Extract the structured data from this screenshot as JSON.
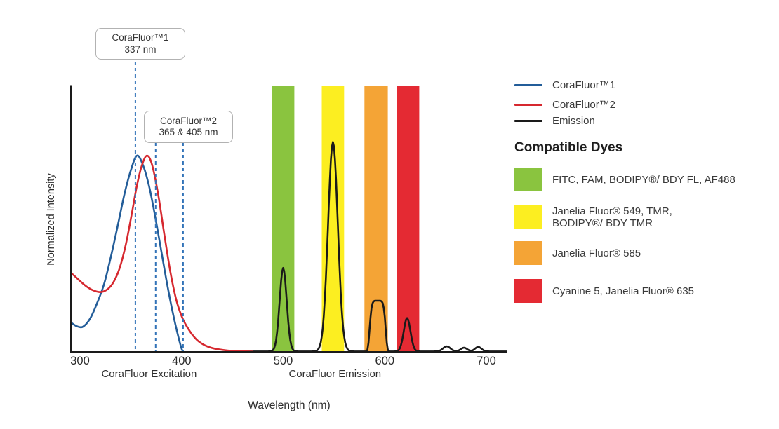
{
  "annotations": {
    "box1": {
      "line1": "CoraFluor™1",
      "line2": "337 nm"
    },
    "box2": {
      "line1": "CoraFluor™2",
      "line2": "365 & 405 nm"
    }
  },
  "legend": {
    "items": [
      {
        "label": "CoraFluor™1",
        "color": "#235D99"
      },
      {
        "label": "CoraFluor™2",
        "color": "#D6282F"
      },
      {
        "label": "Emission",
        "color": "#1A1A1A"
      }
    ],
    "dyes_heading": "Compatible Dyes",
    "dyes": [
      {
        "name": "green",
        "color": "#8AC43F",
        "label": "FITC, FAM, BODIPY®/ BDY FL, AF488",
        "label2": ""
      },
      {
        "name": "yellow",
        "color": "#FCEE21",
        "label": "Janelia Fluor® 549, TMR,",
        "label2": "BODIPY®/ BDY TMR"
      },
      {
        "name": "orange",
        "color": "#F4A436",
        "label": "Janelia Fluor® 585",
        "label2": ""
      },
      {
        "name": "red",
        "color": "#E42A33",
        "label": "Cyanine 5, Janelia Fluor® 635",
        "label2": ""
      }
    ]
  },
  "chart_data": {
    "type": "line",
    "title": "",
    "xlabel": "Wavelength (nm)",
    "ylabel": "Normalized Intensity",
    "x_ticks": [
      300,
      400,
      500,
      600,
      700
    ],
    "xlim": [
      292,
      720
    ],
    "ylim": [
      0,
      1.35
    ],
    "grid": false,
    "marker_color": "#3273B8",
    "emission_color": "#1A1A1A",
    "region_labels": [
      {
        "text": "CoraFluor Excitation",
        "center_nm": 368
      },
      {
        "text": "CoraFluor Emission",
        "center_nm": 551
      }
    ],
    "excitation_markers": [
      {
        "label_nm": "337",
        "nm_drawn": 354.5
      },
      {
        "label_nm": "365",
        "nm_drawn": 374.5
      },
      {
        "label_nm": "405",
        "nm_drawn": 401.5
      }
    ],
    "filter_bands": [
      {
        "name": "green",
        "nm_range": [
          489,
          511
        ],
        "color": "#8AC43F"
      },
      {
        "name": "yellow",
        "nm_range": [
          538,
          560
        ],
        "color": "#FCEE21"
      },
      {
        "name": "orange",
        "nm_range": [
          580,
          603
        ],
        "color": "#F4A436"
      },
      {
        "name": "red",
        "nm_range": [
          612,
          634
        ],
        "color": "#E42A33"
      }
    ],
    "series": [
      {
        "name": "CoraFluor™1 excitation",
        "color": "#235D99",
        "points": [
          [
            292,
            0.148
          ],
          [
            297,
            0.132
          ],
          [
            303,
            0.13
          ],
          [
            310,
            0.172
          ],
          [
            317,
            0.252
          ],
          [
            324,
            0.352
          ],
          [
            331,
            0.5
          ],
          [
            338,
            0.665
          ],
          [
            344,
            0.81
          ],
          [
            350,
            0.925
          ],
          [
            356,
            1.0
          ],
          [
            362,
            0.952
          ],
          [
            368,
            0.845
          ],
          [
            374,
            0.69
          ],
          [
            380,
            0.515
          ],
          [
            386,
            0.34
          ],
          [
            392,
            0.185
          ],
          [
            397,
            0.075
          ],
          [
            400,
            0.018
          ],
          [
            401.5,
            0.003
          ]
        ]
      },
      {
        "name": "CoraFluor™2 excitation",
        "color": "#D6282F",
        "points": [
          [
            292,
            0.4
          ],
          [
            298,
            0.372
          ],
          [
            305,
            0.34
          ],
          [
            312,
            0.317
          ],
          [
            320,
            0.306
          ],
          [
            327,
            0.32
          ],
          [
            333,
            0.357
          ],
          [
            339,
            0.428
          ],
          [
            345,
            0.545
          ],
          [
            351,
            0.705
          ],
          [
            356,
            0.848
          ],
          [
            361,
            0.952
          ],
          [
            366,
            1.0
          ],
          [
            371,
            0.952
          ],
          [
            377,
            0.8
          ],
          [
            383,
            0.6
          ],
          [
            389,
            0.408
          ],
          [
            395,
            0.262
          ],
          [
            401,
            0.172
          ],
          [
            408,
            0.108
          ],
          [
            415,
            0.063
          ],
          [
            423,
            0.035
          ],
          [
            432,
            0.019
          ],
          [
            445,
            0.009
          ],
          [
            458,
            0.005
          ],
          [
            470,
            0.003
          ]
        ]
      }
    ],
    "emission_peaks": [
      {
        "center_nm": 500,
        "height": 0.425,
        "sigma_nm": 3.5
      },
      {
        "center_nm": 549,
        "height": 1.065,
        "sigma_nm": 4.8
      },
      {
        "center_nm": 593,
        "height": 0.258,
        "sigma_nm": 5.8,
        "flat_exponent": 3
      },
      {
        "center_nm": 622,
        "height": 0.17,
        "sigma_nm": 3.3
      },
      {
        "center_nm": 661,
        "height": 0.026,
        "sigma_nm": 3.6
      },
      {
        "center_nm": 678,
        "height": 0.019,
        "sigma_nm": 3.2
      },
      {
        "center_nm": 692,
        "height": 0.023,
        "sigma_nm": 3.2
      }
    ]
  }
}
